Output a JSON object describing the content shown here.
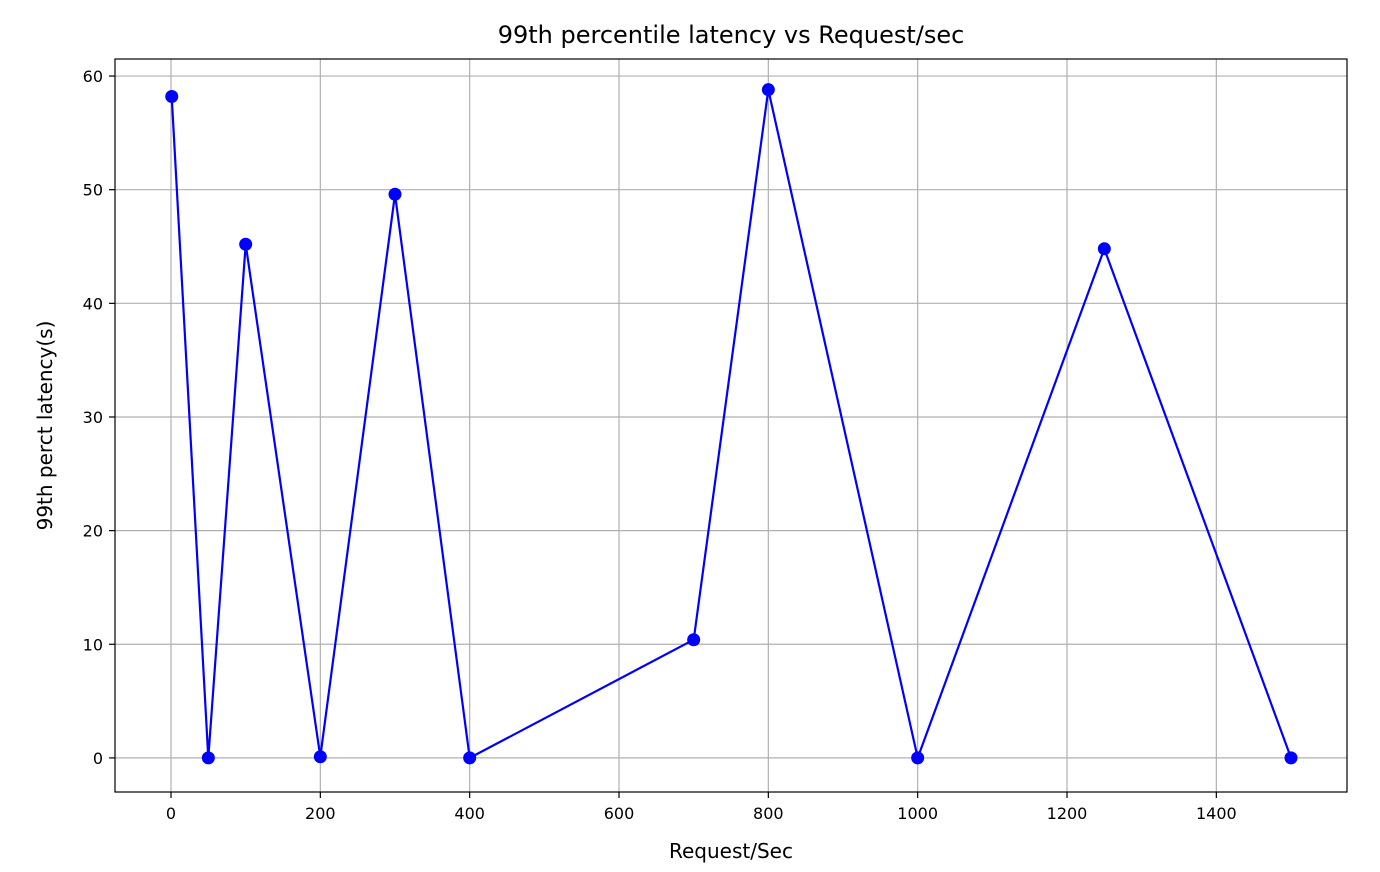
{
  "chart_data": {
    "type": "line",
    "title": "99th percentile latency vs Request/sec",
    "xlabel": "Request/Sec",
    "ylabel": "99th perct latency(s)",
    "xlim": [
      -75,
      1575
    ],
    "ylim": [
      -3,
      61.5
    ],
    "xticks": [
      0,
      200,
      400,
      600,
      800,
      1000,
      1200,
      1400
    ],
    "yticks": [
      0,
      10,
      20,
      30,
      40,
      50,
      60
    ],
    "grid": true,
    "series": [
      {
        "color": "#0000ff",
        "marker": "circle",
        "x": [
          1,
          50,
          100,
          200,
          300,
          400,
          700,
          800,
          1000,
          1250,
          1500
        ],
        "y": [
          58.2,
          0,
          45.2,
          0.1,
          49.6,
          0,
          10.4,
          58.8,
          0,
          44.8,
          0
        ]
      }
    ]
  }
}
